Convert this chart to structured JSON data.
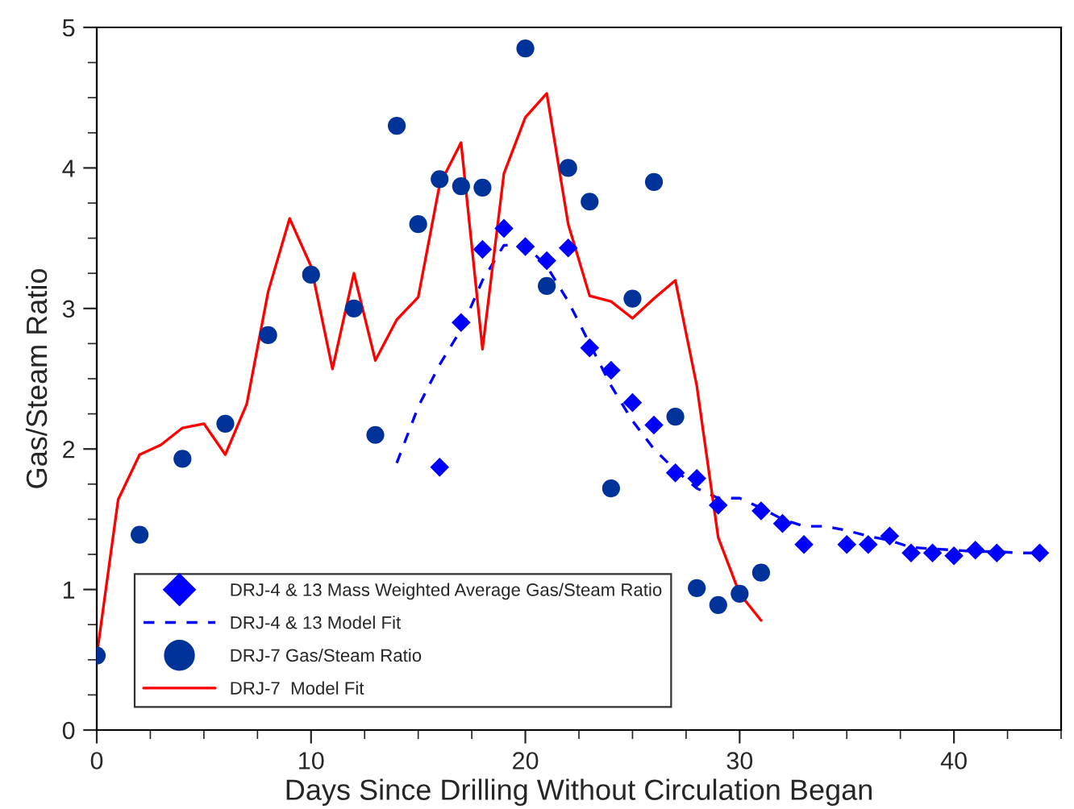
{
  "chart_data": {
    "type": "scatter",
    "xlabel": "Days Since Drilling Without Circulation Began",
    "ylabel": "Gas/Steam Ratio",
    "xlim": [
      0,
      45
    ],
    "ylim": [
      0,
      5
    ],
    "xticks": [
      0,
      10,
      20,
      30,
      40
    ],
    "yticks": [
      0,
      1,
      2,
      3,
      4,
      5
    ],
    "grid": false,
    "legend": "bottom left",
    "series": [
      {
        "name": "DRJ-4 & 13 Mass Weighted Average Gas/Steam Ratio",
        "marker": "diamond",
        "color": "#0000ff",
        "x": [
          16,
          17,
          18,
          19,
          20,
          21,
          22,
          23,
          24,
          25,
          26,
          27,
          28,
          29,
          31,
          32,
          33,
          35,
          36,
          37,
          38,
          39,
          40,
          41,
          42,
          44
        ],
        "values": [
          1.87,
          2.9,
          3.42,
          3.57,
          3.44,
          3.34,
          3.43,
          2.72,
          2.56,
          2.33,
          2.17,
          1.83,
          1.79,
          1.6,
          1.56,
          1.47,
          1.32,
          1.32,
          1.32,
          1.38,
          1.26,
          1.26,
          1.24,
          1.28,
          1.26,
          1.26
        ]
      },
      {
        "name": "DRJ-4 & 13 Model Fit",
        "type": "line",
        "line_style": "dashed",
        "color": "#0000ff",
        "x": [
          14,
          15,
          16,
          17,
          18,
          19,
          20,
          21,
          22,
          23,
          24,
          25,
          26,
          27,
          28,
          29,
          30,
          31,
          32,
          33,
          34,
          35,
          36,
          37,
          38,
          39,
          40,
          41,
          42,
          43,
          44
        ],
        "values": [
          1.9,
          2.3,
          2.6,
          2.85,
          3.2,
          3.45,
          3.45,
          3.3,
          3.05,
          2.75,
          2.45,
          2.2,
          2.0,
          1.85,
          1.72,
          1.65,
          1.65,
          1.58,
          1.5,
          1.45,
          1.45,
          1.42,
          1.38,
          1.35,
          1.3,
          1.29,
          1.28,
          1.27,
          1.27,
          1.26,
          1.26
        ]
      },
      {
        "name": "DRJ-7 Gas/Steam Ratio",
        "marker": "circle",
        "color": "#003399",
        "x": [
          0,
          2,
          4,
          6,
          8,
          10,
          12,
          13,
          14,
          15,
          16,
          17,
          18,
          20,
          21,
          22,
          23,
          24,
          25,
          26,
          27,
          28,
          29,
          30,
          31
        ],
        "values": [
          0.53,
          1.39,
          1.93,
          2.18,
          2.81,
          3.24,
          3.0,
          2.1,
          4.3,
          3.6,
          3.92,
          3.87,
          3.86,
          4.85,
          3.16,
          4.0,
          3.76,
          1.72,
          3.07,
          3.9,
          2.23,
          1.01,
          0.89,
          0.97,
          1.12
        ]
      },
      {
        "name": "DRJ-7  Model Fit",
        "type": "line",
        "line_style": "solid",
        "color": "#ff0000",
        "x": [
          0,
          1,
          2,
          3,
          4,
          5,
          6,
          7,
          8,
          9,
          10,
          11,
          12,
          13,
          14,
          15,
          16,
          17,
          18,
          19,
          20,
          21,
          22,
          23,
          24,
          25,
          26,
          27,
          28,
          29,
          30,
          31
        ],
        "values": [
          0.53,
          1.64,
          1.96,
          2.03,
          2.15,
          2.18,
          1.96,
          2.32,
          3.12,
          3.64,
          3.3,
          2.57,
          3.25,
          2.63,
          2.92,
          3.08,
          3.88,
          4.18,
          2.71,
          3.96,
          4.36,
          4.53,
          3.6,
          3.09,
          3.05,
          2.93,
          3.07,
          3.2,
          2.45,
          1.37,
          0.97,
          0.78
        ]
      }
    ]
  }
}
